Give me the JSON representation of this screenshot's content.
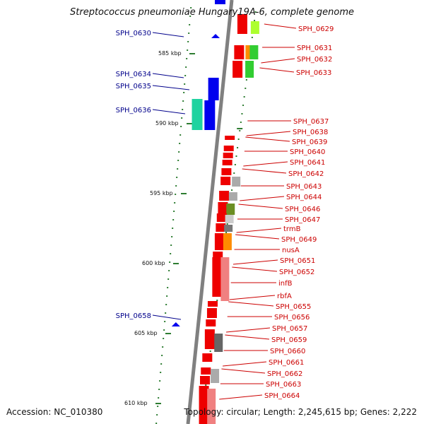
{
  "title": "Streptococcus pneumoniae Hungary19A-6, complete genome",
  "footer": {
    "accession": "Accession: NC_010380",
    "topology": "Topology: circular; Length: 2,245,615 bp; Genes: 2,222"
  },
  "colors": {
    "forward_label": "#00008b",
    "reverse_label": "#cc0000",
    "backbone": "#808080",
    "tick": "#2e7d32"
  },
  "scale_labels": [
    "585 kbp",
    "590 kbp",
    "595 kbp",
    "600 kbp",
    "605 kbp",
    "610 kbp"
  ],
  "forward_genes": [
    "SPH_0630",
    "SPH_0634",
    "SPH_0635",
    "SPH_0636",
    "SPH_0658"
  ],
  "reverse_genes": [
    "SPH_0629",
    "SPH_0631",
    "SPH_0632",
    "SPH_0633",
    "SPH_0637",
    "SPH_0638",
    "SPH_0639",
    "SPH_0640",
    "SPH_0641",
    "SPH_0642",
    "SPH_0643",
    "SPH_0644",
    "SPH_0646",
    "SPH_0647",
    "trmB",
    "SPH_0649",
    "nusA",
    "SPH_0651",
    "SPH_0652",
    "infB",
    "rbfA",
    "SPH_0655",
    "SPH_0656",
    "SPH_0657",
    "SPH_0659",
    "SPH_0660",
    "SPH_0661",
    "SPH_0662",
    "SPH_0663",
    "SPH_0664"
  ]
}
